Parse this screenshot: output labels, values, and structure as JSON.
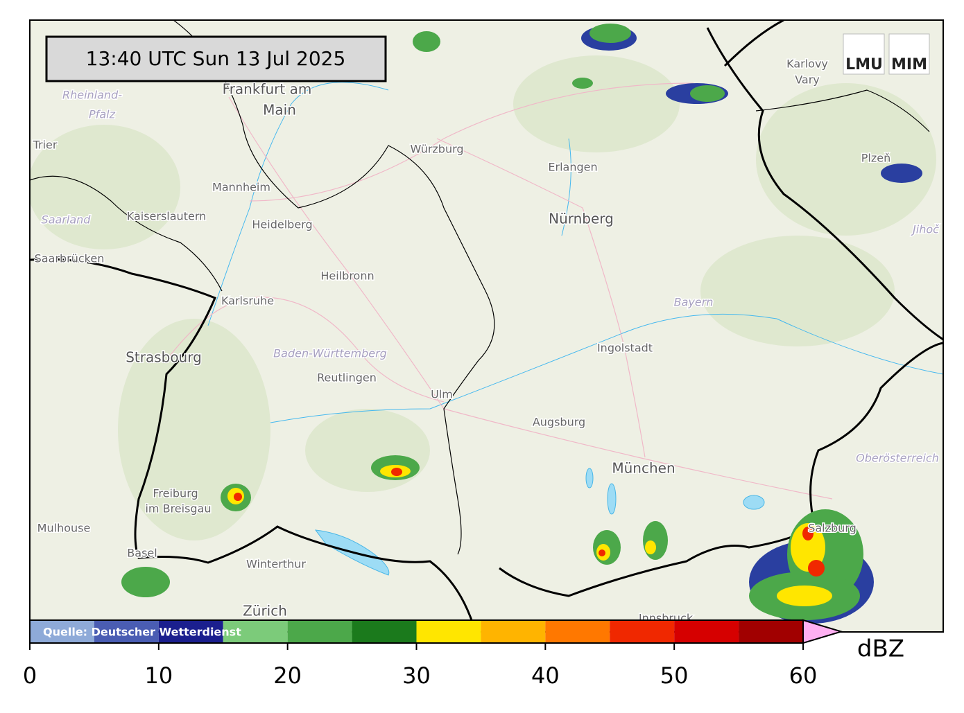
{
  "timestamp": "13:40 UTC  Sun 13 Jul 2025",
  "logos": [
    "LMU",
    "MIM"
  ],
  "map": {
    "places": [
      {
        "name": "Frankfurt am",
        "kind": "city"
      },
      {
        "name": "Main",
        "kind": "city"
      },
      {
        "name": "Rheinland-",
        "kind": "region"
      },
      {
        "name": "Pfalz",
        "kind": "region"
      },
      {
        "name": "Trier",
        "kind": "town"
      },
      {
        "name": "Würzburg",
        "kind": "town"
      },
      {
        "name": "Erlangen",
        "kind": "town"
      },
      {
        "name": "Nürnberg",
        "kind": "city"
      },
      {
        "name": "Mannheim",
        "kind": "town"
      },
      {
        "name": "Kaiserslautern",
        "kind": "town"
      },
      {
        "name": "Heidelberg",
        "kind": "town"
      },
      {
        "name": "Saarland",
        "kind": "region"
      },
      {
        "name": "Saarbrücken",
        "kind": "town"
      },
      {
        "name": "Heilbronn",
        "kind": "town"
      },
      {
        "name": "Karlsruhe",
        "kind": "town"
      },
      {
        "name": "Strasbourg",
        "kind": "city"
      },
      {
        "name": "Baden-Württemberg",
        "kind": "region"
      },
      {
        "name": "Reutlingen",
        "kind": "town"
      },
      {
        "name": "Ulm",
        "kind": "town"
      },
      {
        "name": "Ingolstadt",
        "kind": "town"
      },
      {
        "name": "Bayern",
        "kind": "region"
      },
      {
        "name": "Augsburg",
        "kind": "town"
      },
      {
        "name": "München",
        "kind": "city"
      },
      {
        "name": "Freiburg",
        "kind": "town"
      },
      {
        "name": "im Breisgau",
        "kind": "town"
      },
      {
        "name": "Mulhouse",
        "kind": "town"
      },
      {
        "name": "Basel",
        "kind": "town"
      },
      {
        "name": "Winterthur",
        "kind": "town"
      },
      {
        "name": "Zürich",
        "kind": "city"
      },
      {
        "name": "Innsbruck",
        "kind": "town"
      },
      {
        "name": "Salzburg",
        "kind": "town"
      },
      {
        "name": "Oberösterreich",
        "kind": "region"
      },
      {
        "name": "Karlovy",
        "kind": "town"
      },
      {
        "name": "Vary",
        "kind": "town"
      },
      {
        "name": "Plzeň",
        "kind": "town"
      },
      {
        "name": "Jihoč",
        "kind": "region"
      }
    ]
  },
  "colorbar": {
    "source": "Quelle: Deutscher Wetterdienst",
    "unit": "dBZ",
    "bounds": [
      0,
      5,
      10,
      15,
      20,
      25,
      30,
      35,
      40,
      45,
      50,
      55,
      60
    ],
    "colors": [
      "#8eaad8",
      "#4a5db3",
      "#1b1f8e",
      "#7ccb7a",
      "#4ca84a",
      "#1b7a1c",
      "#ffe600",
      "#ffb400",
      "#ff7800",
      "#f02800",
      "#d60000",
      "#a10000"
    ],
    "extend_color": "#ffb0f2",
    "ticks": [
      0,
      10,
      20,
      30,
      40,
      50,
      60
    ]
  }
}
